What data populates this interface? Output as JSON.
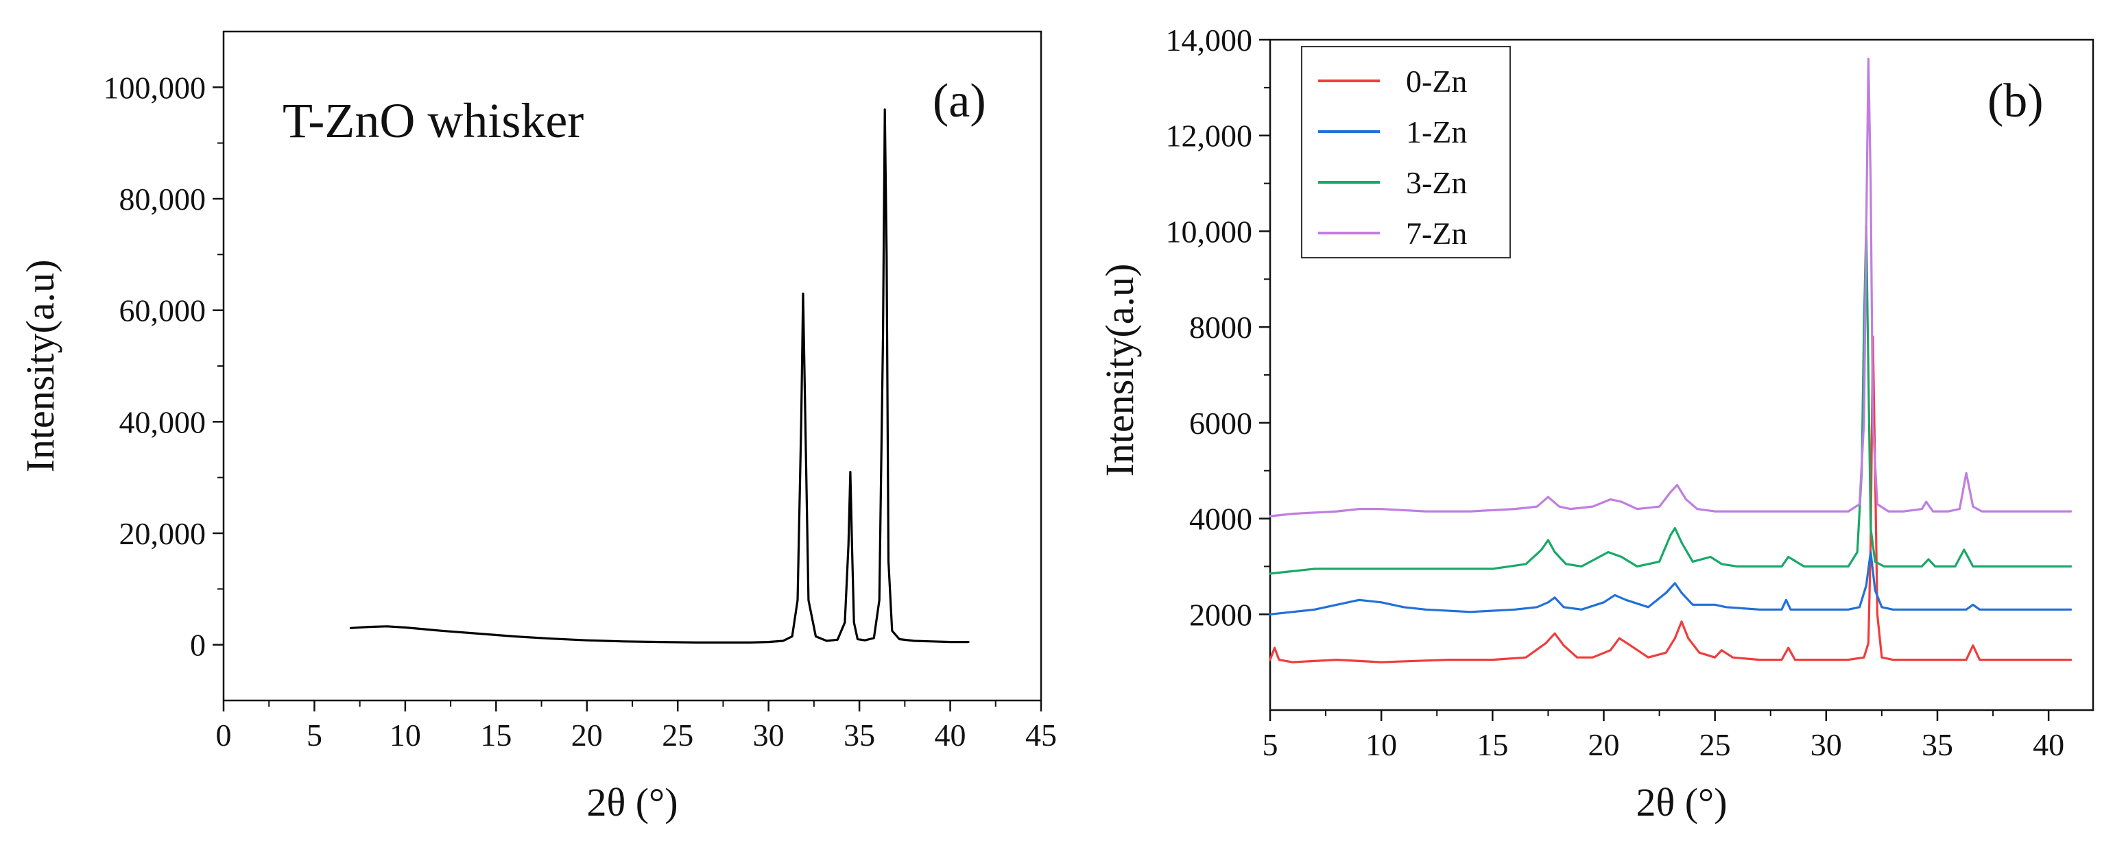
{
  "chart_data": [
    {
      "panel": "(a)",
      "type": "line",
      "title": "T-ZnO whisker",
      "xlabel": "2θ (°)",
      "ylabel": "Intensity(a.u)",
      "xlim": [
        0,
        45
      ],
      "ylim": [
        -10000,
        110000
      ],
      "xticks": [
        0,
        5,
        10,
        15,
        20,
        25,
        30,
        35,
        40,
        45
      ],
      "xtick_labels": [
        "0",
        "5",
        "10",
        "15",
        "20",
        "25",
        "30",
        "35",
        "40",
        "45"
      ],
      "yticks": [
        0,
        20000,
        40000,
        60000,
        80000,
        100000
      ],
      "ytick_labels": [
        "0",
        "20,000",
        "40,000",
        "60,000",
        "80,000",
        "100,000"
      ],
      "series": [
        {
          "name": "T-ZnO whisker",
          "color": "#000000",
          "x": [
            7,
            8,
            9,
            10,
            11,
            12,
            14,
            16,
            18,
            20,
            22,
            24,
            26,
            28,
            29,
            30,
            30.8,
            31.3,
            31.6,
            31.8,
            31.9,
            32.0,
            32.2,
            32.6,
            33.2,
            33.8,
            34.2,
            34.4,
            34.5,
            34.6,
            34.7,
            34.9,
            35.3,
            35.8,
            36.1,
            36.3,
            36.4,
            36.5,
            36.6,
            36.8,
            37.2,
            38,
            39,
            40,
            41
          ],
          "y": [
            3000,
            3200,
            3300,
            3100,
            2800,
            2500,
            2000,
            1500,
            1100,
            800,
            600,
            500,
            400,
            400,
            400,
            500,
            700,
            1500,
            8000,
            40000,
            63000,
            45000,
            8000,
            1500,
            700,
            900,
            4000,
            18000,
            31000,
            17000,
            4000,
            1000,
            800,
            1200,
            8000,
            55000,
            96000,
            70000,
            15000,
            2500,
            1000,
            700,
            600,
            500,
            500
          ]
        }
      ]
    },
    {
      "panel": "(b)",
      "type": "line",
      "title": "",
      "xlabel": "2θ (°)",
      "ylabel": "Intensity(a.u)",
      "xlim": [
        5,
        42
      ],
      "ylim": [
        0,
        14000
      ],
      "xticks": [
        5,
        10,
        15,
        20,
        25,
        30,
        35,
        40
      ],
      "xtick_labels": [
        "5",
        "10",
        "15",
        "20",
        "25",
        "30",
        "35",
        "40"
      ],
      "yticks": [
        2000,
        4000,
        6000,
        8000,
        10000,
        12000,
        14000
      ],
      "ytick_labels": [
        "2000",
        "4000",
        "6000",
        "8000",
        "10,000",
        "12,000",
        "14,000"
      ],
      "legend": {
        "placement": "top-left"
      },
      "series": [
        {
          "name": "0-Zn",
          "color": "#f03c3c",
          "x": [
            5,
            5.2,
            5.4,
            6,
            8,
            10,
            13,
            15,
            16.5,
            17.4,
            17.8,
            18.2,
            18.8,
            19.5,
            20.3,
            20.7,
            21.2,
            22,
            22.8,
            23.2,
            23.5,
            23.8,
            24.3,
            25,
            25.3,
            25.8,
            27,
            28,
            28.3,
            28.6,
            30,
            31,
            31.7,
            31.9,
            32.0,
            32.1,
            32.2,
            32.3,
            32.5,
            33,
            34,
            35,
            36.3,
            36.6,
            36.9,
            38,
            40,
            41
          ],
          "y": [
            1050,
            1300,
            1050,
            1000,
            1050,
            1000,
            1050,
            1050,
            1100,
            1400,
            1600,
            1350,
            1100,
            1100,
            1250,
            1500,
            1350,
            1100,
            1200,
            1500,
            1850,
            1500,
            1200,
            1100,
            1250,
            1100,
            1050,
            1050,
            1300,
            1050,
            1050,
            1050,
            1100,
            1400,
            3500,
            7800,
            5000,
            2000,
            1100,
            1050,
            1050,
            1050,
            1050,
            1350,
            1050,
            1050,
            1050,
            1050
          ]
        },
        {
          "name": "1-Zn",
          "color": "#2270d8",
          "x": [
            5,
            6,
            7,
            8,
            9,
            10,
            11,
            12,
            14,
            16,
            17,
            17.5,
            17.8,
            18.2,
            19,
            20,
            20.5,
            21,
            22,
            22.8,
            23.2,
            23.5,
            24,
            25,
            25.5,
            27,
            28,
            28.2,
            28.4,
            30,
            31,
            31.5,
            31.8,
            32.0,
            32.2,
            32.5,
            33,
            35,
            36.3,
            36.6,
            36.9,
            38,
            40,
            41
          ],
          "y": [
            2000,
            2050,
            2100,
            2200,
            2300,
            2250,
            2150,
            2100,
            2050,
            2100,
            2150,
            2250,
            2350,
            2150,
            2100,
            2250,
            2400,
            2300,
            2150,
            2450,
            2650,
            2450,
            2200,
            2200,
            2150,
            2100,
            2100,
            2300,
            2100,
            2100,
            2100,
            2150,
            2600,
            3300,
            2500,
            2150,
            2100,
            2100,
            2100,
            2200,
            2100,
            2100,
            2100,
            2100
          ]
        },
        {
          "name": "3-Zn",
          "color": "#18a868",
          "x": [
            5,
            7,
            9,
            11,
            13,
            15,
            16.5,
            17.2,
            17.5,
            17.8,
            18.3,
            19,
            19.8,
            20.2,
            20.8,
            21.5,
            22.5,
            23.0,
            23.2,
            23.5,
            24,
            24.8,
            25.3,
            26,
            27.5,
            28,
            28.3,
            29,
            30,
            31,
            31.4,
            31.6,
            31.7,
            31.8,
            31.9,
            32.0,
            32.2,
            32.6,
            33.5,
            34.3,
            34.6,
            34.9,
            35.8,
            36.2,
            36.6,
            37,
            38,
            40,
            41
          ],
          "y": [
            2850,
            2950,
            2950,
            2950,
            2950,
            2950,
            3050,
            3350,
            3550,
            3300,
            3050,
            3000,
            3200,
            3300,
            3200,
            3000,
            3100,
            3650,
            3800,
            3500,
            3100,
            3200,
            3050,
            3000,
            3000,
            3000,
            3200,
            3000,
            3000,
            3000,
            3300,
            5000,
            8000,
            10100,
            7000,
            3800,
            3100,
            3000,
            3000,
            3000,
            3150,
            3000,
            3000,
            3350,
            3000,
            3000,
            3000,
            3000,
            3000
          ]
        },
        {
          "name": "7-Zn",
          "color": "#c07ee0",
          "x": [
            5,
            6,
            8,
            9,
            10,
            12,
            14,
            16,
            17,
            17.5,
            18,
            18.5,
            19.5,
            20.3,
            20.8,
            21.5,
            22.5,
            23.0,
            23.3,
            23.7,
            24.2,
            25,
            26,
            28,
            30,
            31,
            31.5,
            31.7,
            31.8,
            31.9,
            32.0,
            32.1,
            32.3,
            32.8,
            33.5,
            34.3,
            34.5,
            34.8,
            35.5,
            36.0,
            36.3,
            36.6,
            37,
            38,
            40,
            41
          ],
          "y": [
            4050,
            4100,
            4150,
            4200,
            4200,
            4150,
            4150,
            4200,
            4250,
            4450,
            4250,
            4200,
            4250,
            4400,
            4350,
            4200,
            4250,
            4550,
            4700,
            4400,
            4200,
            4150,
            4150,
            4150,
            4150,
            4150,
            4300,
            6000,
            10000,
            13600,
            11000,
            6000,
            4300,
            4150,
            4150,
            4200,
            4350,
            4150,
            4150,
            4200,
            4950,
            4250,
            4150,
            4150,
            4150,
            4150
          ]
        }
      ]
    }
  ],
  "colors": {
    "axis": "#111111",
    "background": "#ffffff"
  }
}
